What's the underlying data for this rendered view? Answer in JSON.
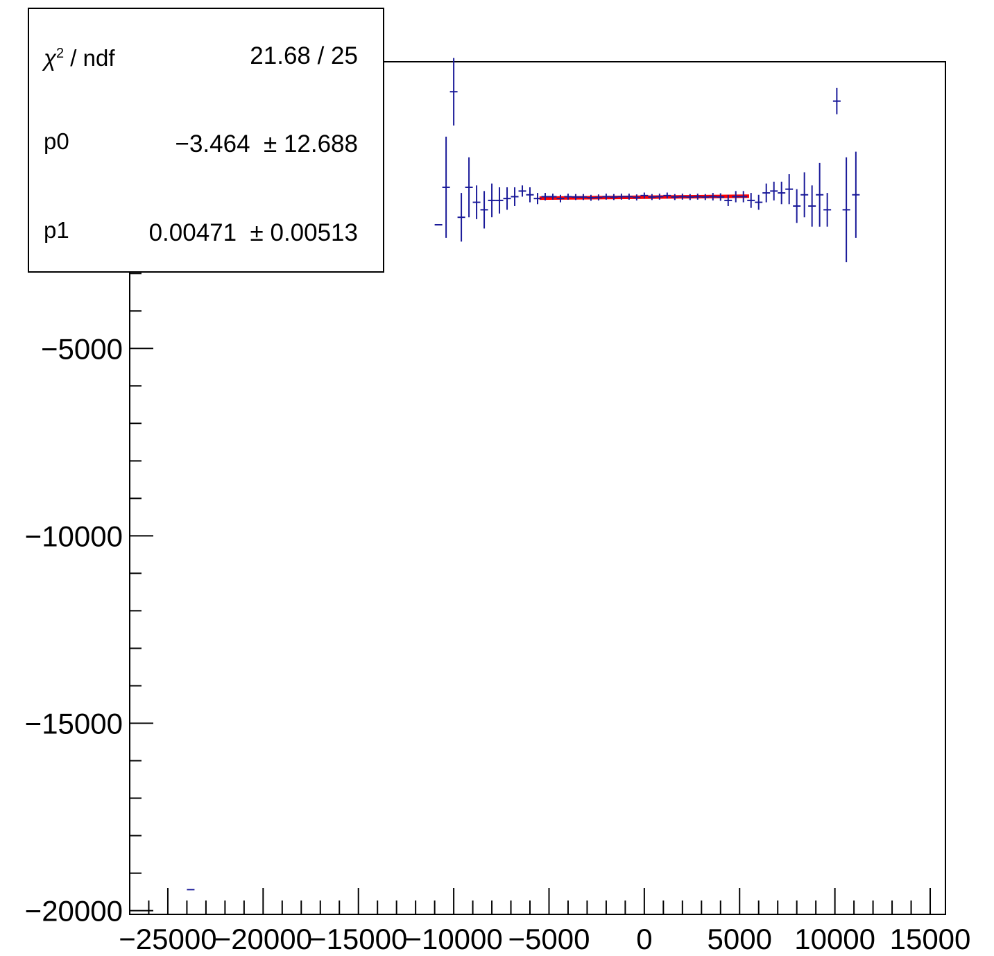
{
  "chart_data": {
    "type": "scatter",
    "title": "",
    "xlabel": "",
    "ylabel": "",
    "xlim": [
      -27000,
      15800
    ],
    "ylim": [
      -20100,
      2650
    ],
    "x_ticks": [
      -25000,
      -20000,
      -15000,
      -10000,
      -5000,
      0,
      5000,
      10000,
      15000
    ],
    "x_tick_labels": [
      "−25000",
      "−20000",
      "−15000",
      "−10000",
      "−5000",
      "0",
      "5000",
      "10000",
      "15000"
    ],
    "y_ticks": [
      -5000,
      -10000,
      -15000,
      -20000
    ],
    "y_tick_labels": [
      "−5000",
      "−10000",
      "−15000",
      "−20000"
    ],
    "grid": false,
    "marker_color": "#1a1a99",
    "fit_color": "#ff0000",
    "points": [
      {
        "x": -23800,
        "y": -19440,
        "xerr": 200,
        "yerr": 0
      },
      {
        "x": -10800,
        "y": -1700,
        "xerr": 200,
        "yerr": 0
      },
      {
        "x": -10400,
        "y": -700,
        "xerr": 200,
        "yerr": 1350
      },
      {
        "x": -10000,
        "y": 1850,
        "xerr": 200,
        "yerr": 900
      },
      {
        "x": -9600,
        "y": -1500,
        "xerr": 200,
        "yerr": 650
      },
      {
        "x": -9200,
        "y": -700,
        "xerr": 200,
        "yerr": 800
      },
      {
        "x": -8800,
        "y": -1100,
        "xerr": 200,
        "yerr": 450
      },
      {
        "x": -8400,
        "y": -1300,
        "xerr": 200,
        "yerr": 500
      },
      {
        "x": -8000,
        "y": -1050,
        "xerr": 200,
        "yerr": 450
      },
      {
        "x": -7600,
        "y": -1050,
        "xerr": 200,
        "yerr": 350
      },
      {
        "x": -7200,
        "y": -1000,
        "xerr": 200,
        "yerr": 300
      },
      {
        "x": -6800,
        "y": -950,
        "xerr": 200,
        "yerr": 250
      },
      {
        "x": -6400,
        "y": -800,
        "xerr": 200,
        "yerr": 150
      },
      {
        "x": -6000,
        "y": -900,
        "xerr": 200,
        "yerr": 200
      },
      {
        "x": -5600,
        "y": -1000,
        "xerr": 200,
        "yerr": 150
      },
      {
        "x": -5200,
        "y": -950,
        "xerr": 200,
        "yerr": 100
      },
      {
        "x": -4800,
        "y": -950,
        "xerr": 200,
        "yerr": 80
      },
      {
        "x": -4400,
        "y": -1000,
        "xerr": 200,
        "yerr": 100
      },
      {
        "x": -4000,
        "y": -950,
        "xerr": 200,
        "yerr": 80
      },
      {
        "x": -3600,
        "y": -960,
        "xerr": 200,
        "yerr": 80
      },
      {
        "x": -3200,
        "y": -960,
        "xerr": 200,
        "yerr": 80
      },
      {
        "x": -2800,
        "y": -980,
        "xerr": 200,
        "yerr": 80
      },
      {
        "x": -2400,
        "y": -970,
        "xerr": 200,
        "yerr": 80
      },
      {
        "x": -2000,
        "y": -950,
        "xerr": 200,
        "yerr": 80
      },
      {
        "x": -1600,
        "y": -960,
        "xerr": 200,
        "yerr": 80
      },
      {
        "x": -1200,
        "y": -950,
        "xerr": 200,
        "yerr": 80
      },
      {
        "x": -800,
        "y": -950,
        "xerr": 200,
        "yerr": 80
      },
      {
        "x": -400,
        "y": -970,
        "xerr": 200,
        "yerr": 80
      },
      {
        "x": 0,
        "y": -920,
        "xerr": 200,
        "yerr": 80
      },
      {
        "x": 400,
        "y": -960,
        "xerr": 200,
        "yerr": 80
      },
      {
        "x": 800,
        "y": -950,
        "xerr": 200,
        "yerr": 80
      },
      {
        "x": 1200,
        "y": -920,
        "xerr": 200,
        "yerr": 80
      },
      {
        "x": 1600,
        "y": -960,
        "xerr": 200,
        "yerr": 80
      },
      {
        "x": 2000,
        "y": -950,
        "xerr": 200,
        "yerr": 80
      },
      {
        "x": 2400,
        "y": -960,
        "xerr": 200,
        "yerr": 80
      },
      {
        "x": 2800,
        "y": -950,
        "xerr": 200,
        "yerr": 80
      },
      {
        "x": 3200,
        "y": -960,
        "xerr": 200,
        "yerr": 80
      },
      {
        "x": 3600,
        "y": -950,
        "xerr": 200,
        "yerr": 100
      },
      {
        "x": 4000,
        "y": -960,
        "xerr": 200,
        "yerr": 100
      },
      {
        "x": 4400,
        "y": -1050,
        "xerr": 200,
        "yerr": 150
      },
      {
        "x": 4800,
        "y": -950,
        "xerr": 200,
        "yerr": 150
      },
      {
        "x": 5200,
        "y": -950,
        "xerr": 200,
        "yerr": 150
      },
      {
        "x": 5600,
        "y": -1050,
        "xerr": 200,
        "yerr": 200
      },
      {
        "x": 6000,
        "y": -1100,
        "xerr": 200,
        "yerr": 200
      },
      {
        "x": 6400,
        "y": -850,
        "xerr": 200,
        "yerr": 250
      },
      {
        "x": 6800,
        "y": -800,
        "xerr": 200,
        "yerr": 250
      },
      {
        "x": 7200,
        "y": -850,
        "xerr": 200,
        "yerr": 300
      },
      {
        "x": 7600,
        "y": -750,
        "xerr": 200,
        "yerr": 400
      },
      {
        "x": 8000,
        "y": -1200,
        "xerr": 200,
        "yerr": 450
      },
      {
        "x": 8400,
        "y": -900,
        "xerr": 200,
        "yerr": 600
      },
      {
        "x": 8800,
        "y": -1200,
        "xerr": 200,
        "yerr": 550
      },
      {
        "x": 9200,
        "y": -900,
        "xerr": 200,
        "yerr": 850
      },
      {
        "x": 9600,
        "y": -1300,
        "xerr": 200,
        "yerr": 450
      },
      {
        "x": 10100,
        "y": 1600,
        "xerr": 200,
        "yerr": 350
      },
      {
        "x": 10600,
        "y": -1300,
        "xerr": 200,
        "yerr": 1400
      },
      {
        "x": 11100,
        "y": -900,
        "xerr": 200,
        "yerr": 1150
      }
    ],
    "fit": {
      "x_range": [
        -5500,
        5500
      ],
      "p0": -3.464,
      "p1": 0.00471
    }
  },
  "stats_box": {
    "chi2_symbol": "χ",
    "chi2_sup": "2",
    "chi2_rest": " / ndf",
    "chi2_value": "21.68 / 25",
    "p0_label": "p0",
    "p0_value": "−3.464  ± 12.688",
    "p1_label": "p1",
    "p1_value": "0.00471  ± 0.00513"
  }
}
